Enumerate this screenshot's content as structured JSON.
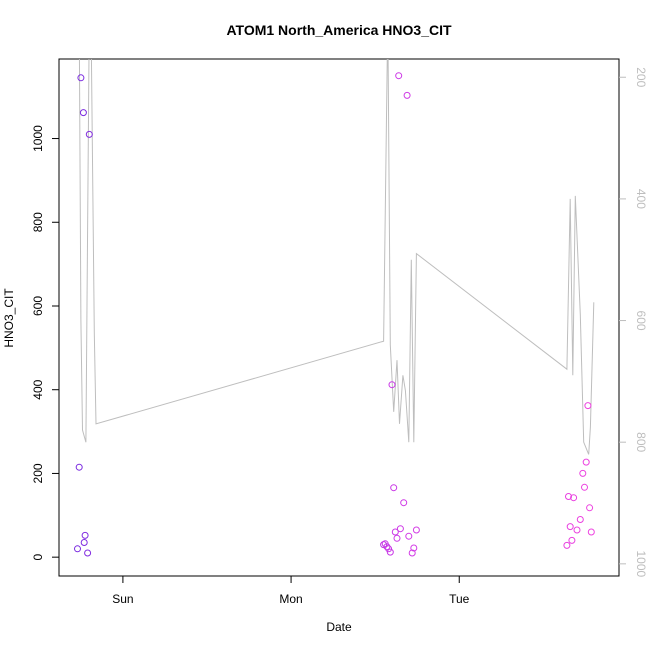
{
  "chart_data": {
    "type": "scatter",
    "title": "ATOM1 North_America HNO3_CIT",
    "xlabel": "Date",
    "ylabel": "HNO3_CIT",
    "x_ticks": [
      {
        "label": "Sun",
        "value": 1.0
      },
      {
        "label": "Mon",
        "value": 2.0
      },
      {
        "label": "Tue",
        "value": 3.0
      }
    ],
    "xlim": [
      0.62,
      3.95
    ],
    "ylim": [
      -45,
      1190
    ],
    "y_ticks": [
      0,
      200,
      400,
      600,
      800,
      1000
    ],
    "right_axis": {
      "ylim": [
        1020,
        170
      ],
      "ticks": [
        200,
        400,
        600,
        800,
        1000
      ],
      "color": "#bebebe",
      "reversed": true
    },
    "series": [
      {
        "type": "line",
        "axis": "right",
        "color": "#bebebe",
        "points": [
          [
            0.74,
            100
          ],
          [
            0.75,
            600
          ],
          [
            0.76,
            780
          ],
          [
            0.78,
            800
          ],
          [
            0.8,
            100
          ],
          [
            0.81,
            100
          ],
          [
            0.83,
            620
          ],
          [
            0.84,
            770
          ],
          [
            2.55,
            634
          ],
          [
            2.575,
            100
          ],
          [
            2.59,
            640
          ],
          [
            2.61,
            750
          ],
          [
            2.63,
            665
          ],
          [
            2.645,
            770
          ],
          [
            2.665,
            690
          ],
          [
            2.68,
            715
          ],
          [
            2.7,
            800
          ],
          [
            2.715,
            500
          ],
          [
            2.73,
            800
          ],
          [
            2.745,
            490
          ],
          [
            3.64,
            680
          ],
          [
            3.66,
            400
          ],
          [
            3.675,
            690
          ],
          [
            3.69,
            395
          ],
          [
            3.72,
            590
          ],
          [
            3.74,
            800
          ],
          [
            3.77,
            820
          ],
          [
            3.78,
            775
          ],
          [
            3.8,
            570
          ]
        ]
      },
      {
        "type": "scatter",
        "axis": "left",
        "marker": "circle-open",
        "points": [
          {
            "x": 0.73,
            "y": 20,
            "color": "#7a2be0"
          },
          {
            "x": 0.74,
            "y": 215,
            "color": "#7b2be0"
          },
          {
            "x": 0.75,
            "y": 1145,
            "color": "#7c2ce0"
          },
          {
            "x": 0.765,
            "y": 1062,
            "color": "#7d2ce0"
          },
          {
            "x": 0.77,
            "y": 35,
            "color": "#7f2ce0"
          },
          {
            "x": 0.775,
            "y": 52,
            "color": "#802ce0"
          },
          {
            "x": 0.79,
            "y": 10,
            "color": "#822ce0"
          },
          {
            "x": 0.8,
            "y": 1010,
            "color": "#832de0"
          },
          {
            "x": 2.55,
            "y": 30,
            "color": "#c436e6"
          },
          {
            "x": 2.56,
            "y": 32,
            "color": "#c536e6"
          },
          {
            "x": 2.57,
            "y": 25,
            "color": "#c637e6"
          },
          {
            "x": 2.58,
            "y": 20,
            "color": "#c737e6"
          },
          {
            "x": 2.59,
            "y": 12,
            "color": "#c837e6"
          },
          {
            "x": 2.6,
            "y": 412,
            "color": "#c937e6"
          },
          {
            "x": 2.61,
            "y": 166,
            "color": "#ca38e6"
          },
          {
            "x": 2.62,
            "y": 60,
            "color": "#cb38e6"
          },
          {
            "x": 2.63,
            "y": 45,
            "color": "#cc38e6"
          },
          {
            "x": 2.64,
            "y": 1150,
            "color": "#cd39e6"
          },
          {
            "x": 2.65,
            "y": 68,
            "color": "#ce39e6"
          },
          {
            "x": 2.67,
            "y": 130,
            "color": "#cf39e6"
          },
          {
            "x": 2.69,
            "y": 1103,
            "color": "#d03ae6"
          },
          {
            "x": 2.7,
            "y": 50,
            "color": "#d13ae6"
          },
          {
            "x": 2.72,
            "y": 10,
            "color": "#d23ae6"
          },
          {
            "x": 2.73,
            "y": 22,
            "color": "#d33be6"
          },
          {
            "x": 2.745,
            "y": 65,
            "color": "#d43be6"
          },
          {
            "x": 3.64,
            "y": 28,
            "color": "#e83fe0"
          },
          {
            "x": 3.65,
            "y": 145,
            "color": "#e83fe0"
          },
          {
            "x": 3.66,
            "y": 73,
            "color": "#e940e0"
          },
          {
            "x": 3.67,
            "y": 40,
            "color": "#e940e0"
          },
          {
            "x": 3.68,
            "y": 142,
            "color": "#ea40e0"
          },
          {
            "x": 3.7,
            "y": 65,
            "color": "#ea41e0"
          },
          {
            "x": 3.72,
            "y": 90,
            "color": "#eb41e0"
          },
          {
            "x": 3.735,
            "y": 200,
            "color": "#eb42e0"
          },
          {
            "x": 3.745,
            "y": 167,
            "color": "#ec42e0"
          },
          {
            "x": 3.755,
            "y": 227,
            "color": "#ec42e0"
          },
          {
            "x": 3.765,
            "y": 362,
            "color": "#ed43e0"
          },
          {
            "x": 3.775,
            "y": 118,
            "color": "#ed43e0"
          },
          {
            "x": 3.785,
            "y": 60,
            "color": "#ee43e0"
          }
        ]
      }
    ]
  }
}
